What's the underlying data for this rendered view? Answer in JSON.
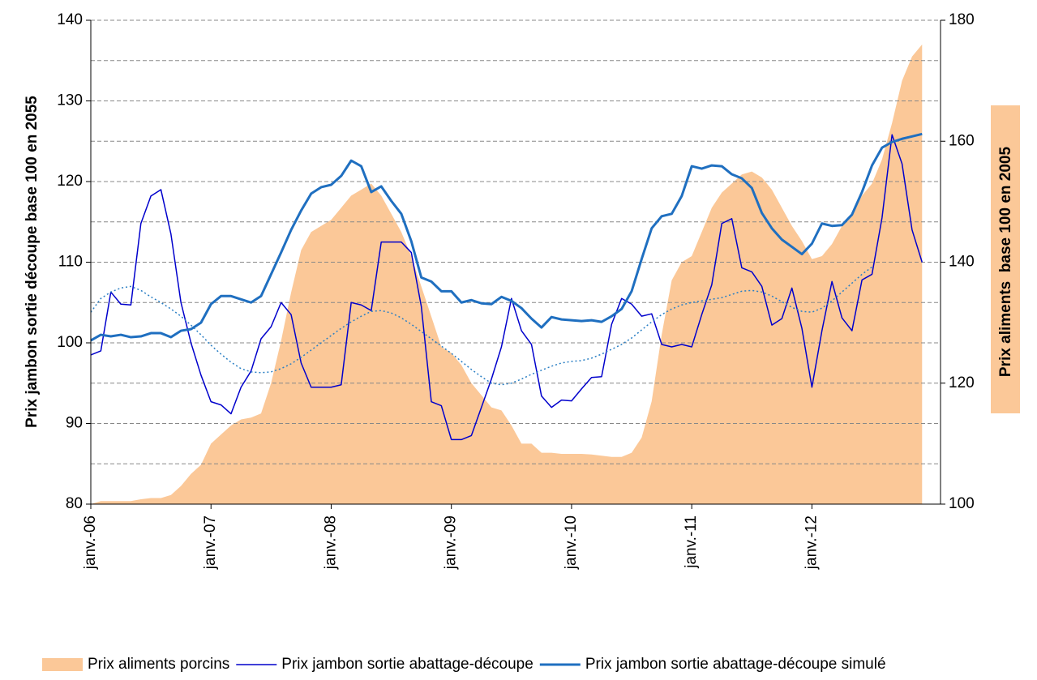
{
  "chart_data": {
    "type": "line",
    "y_label": "Prix jambon sortie découpe base 100 en 2055",
    "y2_label": "Prix aliments  base 100 en 2005",
    "ylim": [
      80,
      140
    ],
    "yticks": [
      80,
      90,
      100,
      110,
      120,
      130,
      140
    ],
    "y2lim": [
      100,
      180
    ],
    "y2ticks": [
      100,
      120,
      140,
      160,
      180
    ],
    "grid": true,
    "legend": "bottom",
    "categories": [
      "janv.-06",
      null,
      null,
      null,
      null,
      null,
      null,
      null,
      null,
      null,
      null,
      null,
      "janv.-07",
      null,
      null,
      null,
      null,
      null,
      null,
      null,
      null,
      null,
      null,
      null,
      "janv.-08",
      null,
      null,
      null,
      null,
      null,
      null,
      null,
      null,
      null,
      null,
      null,
      "janv.-09",
      null,
      null,
      null,
      null,
      null,
      null,
      null,
      null,
      null,
      null,
      null,
      "janv.-10",
      null,
      null,
      null,
      null,
      null,
      null,
      null,
      null,
      null,
      null,
      null,
      "janv.-11",
      null,
      null,
      null,
      null,
      null,
      null,
      null,
      null,
      null,
      null,
      null,
      "janv.-12",
      null,
      null,
      null,
      null,
      null,
      null,
      null,
      null,
      null,
      null,
      null
    ],
    "series": [
      {
        "name": "Prix aliments porcins",
        "color": "#fbc898",
        "style": "area",
        "axis": "y2",
        "values": [
          100,
          100.5,
          100.5,
          100.5,
          100.5,
          100.8,
          101,
          101,
          101.5,
          103,
          105,
          106.5,
          110,
          111.5,
          113,
          114,
          114.3,
          115,
          120,
          127,
          135,
          142,
          145,
          146,
          147,
          149,
          151,
          152,
          153,
          151,
          148,
          145,
          141,
          136,
          131,
          126,
          125,
          123,
          120,
          118,
          116,
          115.5,
          113,
          110,
          110,
          108.5,
          108.5,
          108.3,
          108.3,
          108.3,
          108.2,
          108,
          107.8,
          107.8,
          108.5,
          111,
          117,
          128,
          137,
          140,
          141,
          145,
          149,
          151.5,
          153,
          154.5,
          155,
          154,
          152,
          149,
          146,
          143.5,
          140.5,
          141,
          143,
          146,
          148,
          151,
          153,
          157,
          163,
          170,
          174,
          176
        ]
      },
      {
        "name": "Prix jambon sortie abattage-découpe",
        "color": "#0000cc",
        "style": "line",
        "width": 1.5,
        "values": [
          98.5,
          99,
          106.3,
          104.8,
          104.7,
          114.8,
          118.2,
          119,
          113.5,
          105,
          100,
          96,
          92.7,
          92.3,
          91.2,
          94.5,
          96.5,
          100.5,
          102,
          105,
          103.5,
          97.5,
          94.5,
          94.5,
          94.5,
          94.8,
          105,
          104.7,
          104,
          112.5,
          112.5,
          112.5,
          111.2,
          104.5,
          92.7,
          92.2,
          88,
          88,
          88.5,
          92,
          95.5,
          99.5,
          105.5,
          101.5,
          99.8,
          93.4,
          92,
          92.9,
          92.8,
          94.3,
          95.7,
          95.8,
          102.3,
          105.5,
          104.8,
          103.3,
          103.6,
          99.8,
          99.5,
          99.8,
          99.5,
          103.5,
          107.2,
          114.8,
          115.4,
          109.3,
          108.8,
          107,
          102.2,
          103,
          106.8,
          101.8,
          94.5,
          101.5,
          107.6,
          103.1,
          101.5,
          107.8,
          108.5,
          115.5,
          125.8,
          122.2,
          114,
          110
        ]
      },
      {
        "name": "Prix jambon sortie abattage-découpe simulé",
        "color": "#1f6fc0",
        "style": "line",
        "width": 3,
        "values": [
          100.3,
          101,
          100.8,
          101,
          100.7,
          100.8,
          101.2,
          101.2,
          100.7,
          101.5,
          101.7,
          102.5,
          104.8,
          105.8,
          105.8,
          105.4,
          105,
          105.8,
          108.5,
          111.2,
          114,
          116.4,
          118.5,
          119.3,
          119.6,
          120.7,
          122.6,
          121.9,
          118.7,
          119.4,
          117.6,
          116,
          112.6,
          108.1,
          107.6,
          106.4,
          106.4,
          105,
          105.3,
          104.9,
          104.8,
          105.7,
          105.2,
          104.3,
          103,
          101.9,
          103.2,
          102.9,
          102.8,
          102.7,
          102.8,
          102.6,
          103.3,
          104.2,
          106.4,
          110.4,
          114.2,
          115.7,
          116,
          118.2,
          121.9,
          121.6,
          122,
          121.9,
          120.9,
          120.4,
          119.2,
          116.1,
          114.2,
          112.8,
          111.9,
          111,
          112.3,
          114.8,
          114.5,
          114.6,
          115.9,
          118.7,
          122,
          124.2,
          124.9,
          125.3,
          125.6,
          125.9
        ]
      },
      {
        "color": "#2a7fc4",
        "style": "dotted",
        "width": 1.5,
        "values": [
          103.8,
          105.5,
          106.3,
          106.8,
          107,
          106.5,
          105.7,
          105,
          104.2,
          103.3,
          102.2,
          101,
          99.7,
          98.6,
          97.6,
          96.8,
          96.4,
          96.3,
          96.4,
          96.8,
          97.4,
          98.2,
          99.1,
          100,
          100.9,
          101.8,
          102.6,
          103.3,
          103.9,
          104,
          103.7,
          103.1,
          102.3,
          101.4,
          100.5,
          99.6,
          98.7,
          97.7,
          96.7,
          95.8,
          95,
          94.8,
          95,
          95.5,
          96.1,
          96.6,
          97.1,
          97.5,
          97.7,
          97.8,
          98.1,
          98.6,
          99.2,
          99.8,
          100.6,
          101.6,
          102.6,
          103.5,
          104.2,
          104.7,
          105,
          105.2,
          105.4,
          105.6,
          106,
          106.4,
          106.5,
          106.3,
          105.8,
          105.1,
          104.4,
          103.9,
          103.8,
          104.3,
          105.2,
          106.3,
          107.4,
          108.5,
          109.4,
          null,
          null,
          null,
          null,
          null
        ]
      }
    ]
  }
}
